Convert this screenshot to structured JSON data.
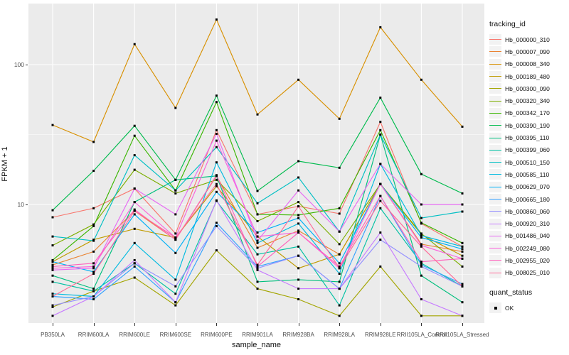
{
  "chart_data": {
    "type": "line",
    "title": "",
    "xlabel": "sample_name",
    "ylabel": "FPKM + 1",
    "yscale": "log10",
    "ylim": [
      1.4,
      280
    ],
    "yticks": [
      100,
      10
    ],
    "ytick_labels": [
      "100",
      "10"
    ],
    "minor_gridline_values": [
      31.62,
      3.162
    ],
    "grid": "white major/minor gridlines on gray panel",
    "legend_position": "right",
    "point_marker": "small black square (quant_status OK)",
    "categories": [
      "PB350LA",
      "RRIM600LA",
      "RRIM600LE",
      "RRIM600SE",
      "RRIM600PE",
      "RRIM901LA",
      "RRIM928BA",
      "RRIM928LA",
      "RRIM928LE",
      "RRII105LA_Control",
      "RRII105LA_Stressed"
    ],
    "series": [
      {
        "name": "Hb_000000_310",
        "color": "#F8766D",
        "values": [
          8.1,
          9.4,
          13,
          6.2,
          34,
          8.5,
          9.7,
          8.6,
          39,
          7.3,
          5.0
        ]
      },
      {
        "name": "Hb_000007_090",
        "color": "#EA8331",
        "values": [
          3.7,
          4.6,
          9.0,
          5.6,
          16,
          4.9,
          6.5,
          4.4,
          14,
          5.2,
          4.6
        ]
      },
      {
        "name": "Hb_000008_340",
        "color": "#D89000",
        "values": [
          37,
          28,
          140,
          49,
          210,
          44,
          78,
          41,
          185,
          78,
          36
        ]
      },
      {
        "name": "Hb_000189_480",
        "color": "#C09B00",
        "values": [
          3.9,
          5.6,
          6.7,
          5.8,
          13.5,
          5.9,
          3.5,
          4.4,
          14,
          6.1,
          4.3
        ]
      },
      {
        "name": "Hb_000300_090",
        "color": "#A3A500",
        "values": [
          1.85,
          2.4,
          3.0,
          1.9,
          4.7,
          2.5,
          2.1,
          1.6,
          3.6,
          1.6,
          1.6
        ]
      },
      {
        "name": "Hb_000320_340",
        "color": "#7CAE00",
        "values": [
          5.1,
          7.2,
          17.7,
          12,
          15,
          7.6,
          10.4,
          5.2,
          14,
          6.2,
          3.6
        ]
      },
      {
        "name": "Hb_000342_170",
        "color": "#39B600",
        "values": [
          4.0,
          7.0,
          31,
          12.6,
          54,
          8.5,
          8.4,
          9.4,
          34,
          7.4,
          5.3
        ]
      },
      {
        "name": "Hb_000390_190",
        "color": "#00BB4E",
        "values": [
          9.1,
          17.4,
          36.5,
          15,
          60,
          12.5,
          20.4,
          18.3,
          58,
          16.5,
          12
        ]
      },
      {
        "name": "Hb_000395_110",
        "color": "#00BF7D",
        "values": [
          3.1,
          2.5,
          10.4,
          15,
          16,
          2.8,
          2.9,
          2.8,
          31.6,
          3.1,
          2.0
        ]
      },
      {
        "name": "Hb_000399_060",
        "color": "#00C1A3",
        "values": [
          2.8,
          2.4,
          3.8,
          2.3,
          10.6,
          4.4,
          5.0,
          1.9,
          9.4,
          3.8,
          2.6
        ]
      },
      {
        "name": "Hb_000510_150",
        "color": "#00BFC4",
        "values": [
          5.9,
          5.5,
          22.5,
          12.6,
          25.7,
          10.2,
          15.6,
          6.4,
          31.6,
          8.0,
          8.9
        ]
      },
      {
        "name": "Hb_000585_110",
        "color": "#00BAE0",
        "values": [
          2.3,
          2.2,
          5.3,
          2.9,
          20,
          5.3,
          7.3,
          3.2,
          19.5,
          6.0,
          5.0
        ]
      },
      {
        "name": "Hb_000629_070",
        "color": "#00B0F6",
        "values": [
          3.9,
          3.3,
          8.5,
          4.5,
          12.3,
          6.3,
          8.0,
          3.8,
          14,
          5.8,
          4.8
        ]
      },
      {
        "name": "Hb_000665_180",
        "color": "#35A2FF",
        "values": [
          2.2,
          2.1,
          3.6,
          2.0,
          7.4,
          3.6,
          4.3,
          2.5,
          11.5,
          3.7,
          2.7
        ]
      },
      {
        "name": "Hb_000860_060",
        "color": "#9590FF",
        "values": [
          1.9,
          2.2,
          3.8,
          2.6,
          7.0,
          3.5,
          4.3,
          2.5,
          5.6,
          3.6,
          2.6
        ]
      },
      {
        "name": "Hb_000920_310",
        "color": "#C77CFF",
        "values": [
          1.6,
          2.2,
          4.0,
          2.0,
          10.7,
          3.4,
          2.5,
          2.5,
          6.3,
          2.1,
          1.6
        ]
      },
      {
        "name": "Hb_001486_040",
        "color": "#E76BF3",
        "values": [
          3.4,
          3.5,
          13,
          8.5,
          32,
          5.5,
          12.6,
          6.4,
          19.5,
          10,
          10
        ]
      },
      {
        "name": "Hb_002249_080",
        "color": "#FA62DB",
        "values": [
          3.5,
          3.6,
          10.4,
          5.8,
          28.6,
          5.9,
          6.3,
          3.5,
          14,
          5.1,
          4.1
        ]
      },
      {
        "name": "Hb_002955_020",
        "color": "#FF62BC",
        "values": [
          3.6,
          3.8,
          9.2,
          5.6,
          16.2,
          3.6,
          6.3,
          3.6,
          11.5,
          3.9,
          4.1
        ]
      },
      {
        "name": "Hb_008025_010",
        "color": "#FF6A98",
        "values": [
          2.2,
          3.2,
          9.0,
          5.8,
          14,
          3.7,
          9.7,
          3.5,
          10.6,
          5.0,
          2.6
        ]
      }
    ]
  },
  "legend": {
    "tracking_title": "tracking_id",
    "quant_title": "quant_status",
    "quant_items": [
      {
        "label": "OK",
        "marker_color": "#000000"
      }
    ]
  },
  "colors": {
    "panel_background": "#EBEBEB",
    "gridline": "#FFFFFF",
    "tick_label": "#4D4D4D",
    "point": "#000000",
    "legend_key_background": "#F2F2F2"
  }
}
